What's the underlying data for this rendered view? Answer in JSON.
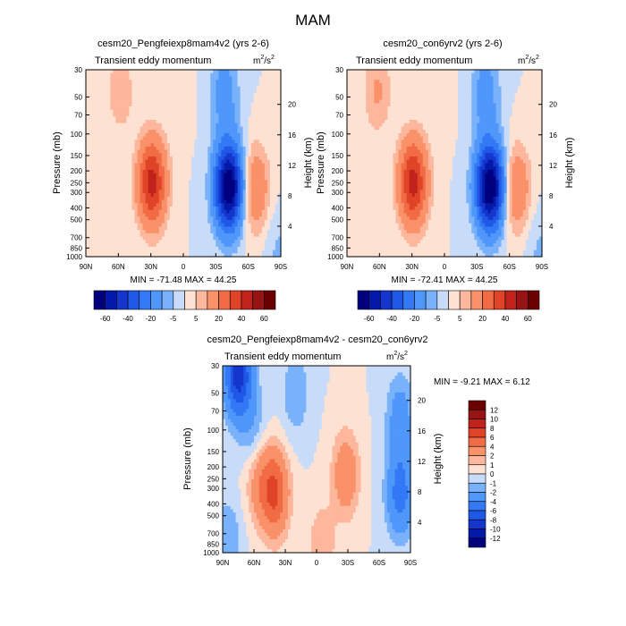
{
  "figure_title": "MAM",
  "chart_data": [
    {
      "type": "heatmap",
      "id": "p1",
      "title": "cesm20_Pengfeiexp8mam4v2 (yrs 2-6)",
      "subtitle": "Transient eddy momentum",
      "units": "m²/s²",
      "units_base": "m",
      "units_sup1": "2",
      "units_mid": "/s",
      "units_sup2": "2",
      "xlabel": "",
      "ylabel": "Pressure (mb)",
      "ylabel_right": "Height (km)",
      "xlim": [
        90,
        -90
      ],
      "x_ticks": [
        90,
        60,
        30,
        0,
        -30,
        -60,
        -90
      ],
      "x_tick_labels": [
        "90N",
        "60N",
        "30N",
        "0",
        "30S",
        "60S",
        "90S"
      ],
      "ylim": [
        1000,
        30
      ],
      "y_ticks": [
        30,
        50,
        70,
        100,
        150,
        200,
        250,
        300,
        400,
        500,
        700,
        850,
        1000
      ],
      "y_tick_labels": [
        "30",
        "50",
        "70",
        "100",
        "150",
        "200",
        "250",
        "300",
        "400",
        "500",
        "700",
        "850",
        "1000"
      ],
      "height_ticks": [
        4,
        8,
        12,
        16,
        20
      ],
      "height_tick_labels": [
        "4",
        "8",
        "12",
        "16",
        "20"
      ],
      "stats": "MIN = -71.48   MAX =  44.25",
      "min": -71.48,
      "max": 44.25,
      "features": [
        {
          "lat": 29,
          "p": 250,
          "amp": 44.25
        },
        {
          "lat": -42,
          "p": 270,
          "amp": -71.48
        },
        {
          "lat": -66,
          "p": 280,
          "amp": 20
        },
        {
          "lat": 58,
          "p": 45,
          "amp": 9
        },
        {
          "lat": -38,
          "p": 45,
          "amp": -14
        },
        {
          "lat": 5,
          "p": 40,
          "amp": 3
        },
        {
          "lat": -88,
          "p": 900,
          "amp": -6
        }
      ]
    },
    {
      "type": "heatmap",
      "id": "p2",
      "title": "cesm20_con6yrv2 (yrs 2-6)",
      "subtitle": "Transient eddy momentum",
      "units": "m²/s²",
      "units_base": "m",
      "units_sup1": "2",
      "units_mid": "/s",
      "units_sup2": "2",
      "xlabel": "",
      "ylabel": "Pressure (mb)",
      "ylabel_right": "Height (km)",
      "xlim": [
        90,
        -90
      ],
      "x_ticks": [
        90,
        60,
        30,
        0,
        -30,
        -60,
        -90
      ],
      "x_tick_labels": [
        "90N",
        "60N",
        "30N",
        "0",
        "30S",
        "60S",
        "90S"
      ],
      "ylim": [
        1000,
        30
      ],
      "y_ticks": [
        30,
        50,
        70,
        100,
        150,
        200,
        250,
        300,
        400,
        500,
        700,
        850,
        1000
      ],
      "y_tick_labels": [
        "30",
        "50",
        "70",
        "100",
        "150",
        "200",
        "250",
        "300",
        "400",
        "500",
        "700",
        "850",
        "1000"
      ],
      "height_ticks": [
        4,
        8,
        12,
        16,
        20
      ],
      "height_tick_labels": [
        "4",
        "8",
        "12",
        "16",
        "20"
      ],
      "stats": "MIN = -72.41   MAX =  44.25",
      "min": -72.41,
      "max": 44.25,
      "features": [
        {
          "lat": 29,
          "p": 250,
          "amp": 44.25
        },
        {
          "lat": -42,
          "p": 270,
          "amp": -72.41
        },
        {
          "lat": -66,
          "p": 280,
          "amp": 20
        },
        {
          "lat": 62,
          "p": 45,
          "amp": 11
        },
        {
          "lat": -38,
          "p": 45,
          "amp": -14
        },
        {
          "lat": 5,
          "p": 40,
          "amp": 3
        },
        {
          "lat": -88,
          "p": 900,
          "amp": -6
        }
      ]
    },
    {
      "type": "heatmap",
      "id": "p3",
      "title": "cesm20_Pengfeiexp8mam4v2 - cesm20_con6yrv2",
      "subtitle": "Transient eddy momentum",
      "units": "m²/s²",
      "units_base": "m",
      "units_sup1": "2",
      "units_mid": "/s",
      "units_sup2": "2",
      "xlabel": "",
      "ylabel": "Pressure (mb)",
      "ylabel_right": "Height (km)",
      "xlim": [
        90,
        -90
      ],
      "x_ticks": [
        90,
        60,
        30,
        0,
        -30,
        -60,
        -90
      ],
      "x_tick_labels": [
        "90N",
        "60N",
        "30N",
        "0",
        "30S",
        "60S",
        "90S"
      ],
      "ylim": [
        1000,
        30
      ],
      "y_ticks": [
        30,
        50,
        70,
        100,
        150,
        200,
        250,
        300,
        400,
        500,
        700,
        850,
        1000
      ],
      "y_tick_labels": [
        "30",
        "50",
        "70",
        "100",
        "150",
        "200",
        "250",
        "300",
        "400",
        "500",
        "700",
        "850",
        "1000"
      ],
      "height_ticks": [
        4,
        8,
        12,
        16,
        20
      ],
      "height_tick_labels": [
        "4",
        "8",
        "12",
        "16",
        "20"
      ],
      "stats": "MIN =  -9.21   MAX =   6.12",
      "min": -9.21,
      "max": 6.12,
      "features": [
        {
          "lat": 75,
          "p": 35,
          "amp": -9.21
        },
        {
          "lat": 40,
          "p": 330,
          "amp": 6.12
        },
        {
          "lat": 55,
          "p": 250,
          "amp": 3
        },
        {
          "lat": -28,
          "p": 230,
          "amp": 3.5
        },
        {
          "lat": -80,
          "p": 330,
          "amp": -5
        },
        {
          "lat": -80,
          "p": 80,
          "amp": -3
        },
        {
          "lat": 60,
          "p": 110,
          "amp": -2
        },
        {
          "lat": 20,
          "p": 50,
          "amp": -2
        },
        {
          "lat": -5,
          "p": 900,
          "amp": 2
        },
        {
          "lat": 85,
          "p": 800,
          "amp": -2
        }
      ]
    }
  ],
  "colorbars": {
    "full": {
      "levels": [
        -60,
        -50,
        -40,
        -30,
        -20,
        -10,
        -5,
        0,
        5,
        10,
        20,
        30,
        40,
        50,
        60
      ],
      "tick_labels": [
        "-60",
        "-40",
        "-20",
        "-5",
        "5",
        "20",
        "40",
        "60"
      ],
      "colors": [
        "#00007f",
        "#0219a9",
        "#1536cc",
        "#1f57e6",
        "#3378f5",
        "#4f97fa",
        "#79b2fa",
        "#c8dcfa",
        "#fde2d3",
        "#fcb79c",
        "#f99169",
        "#f16b45",
        "#e04427",
        "#c0231b",
        "#961414",
        "#6a0000"
      ]
    },
    "diff": {
      "levels": [
        -12,
        -10,
        -8,
        -6,
        -4,
        -2,
        -1,
        0,
        1,
        2,
        4,
        6,
        8,
        10,
        12
      ],
      "tick_labels": [
        "-12",
        "-10",
        "-8",
        "-6",
        "-4",
        "-2",
        "-1",
        "0",
        "1",
        "2",
        "4",
        "6",
        "8",
        "10",
        "12"
      ],
      "colors": [
        "#00007f",
        "#0219a9",
        "#1536cc",
        "#1f57e6",
        "#3378f5",
        "#4f97fa",
        "#79b2fa",
        "#c8dcfa",
        "#fde2d3",
        "#fcb79c",
        "#f99169",
        "#f16b45",
        "#e04427",
        "#c0231b",
        "#961414",
        "#6a0000"
      ]
    }
  }
}
